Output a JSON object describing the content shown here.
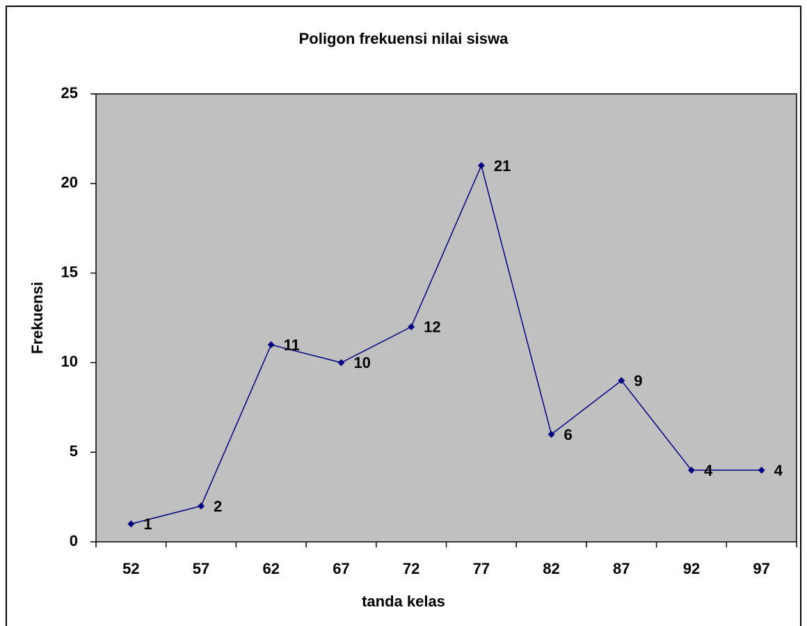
{
  "chart_data": {
    "type": "line",
    "title": "Poligon frekuensi nilai siswa",
    "x_label": "tanda kelas",
    "y_label": "Frekuensi",
    "categories": [
      "52",
      "57",
      "62",
      "67",
      "72",
      "77",
      "82",
      "87",
      "92",
      "97"
    ],
    "series": [
      {
        "name": "Frekuensi",
        "color": "#000080",
        "values": [
          1,
          2,
          11,
          10,
          12,
          21,
          6,
          9,
          4,
          4
        ]
      }
    ],
    "ylim": [
      0,
      25
    ],
    "yticks": [
      0,
      5,
      10,
      15,
      20,
      25
    ],
    "grid": false,
    "data_labels": true
  }
}
